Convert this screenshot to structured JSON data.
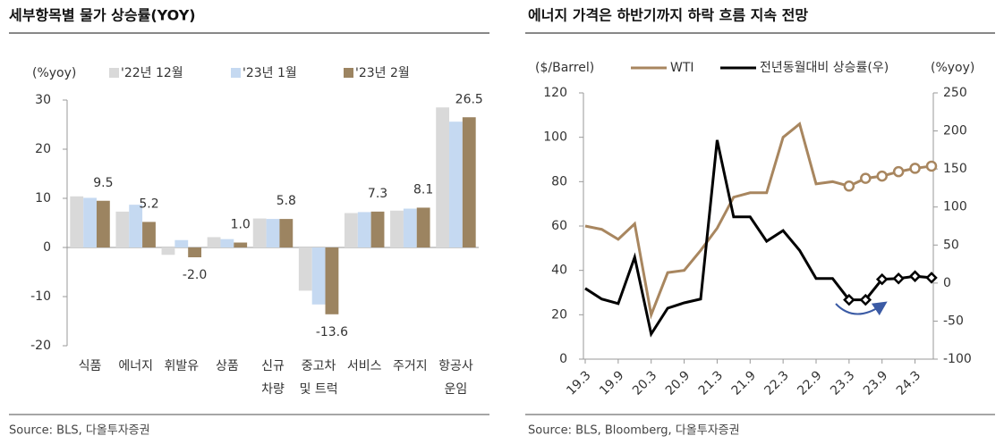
{
  "chart_data": [
    {
      "type": "bar",
      "title": "세부항목별 물가 상승률(YOY)",
      "ylabel": "(%yoy)",
      "source": "Source: BLS, 다올투자증권",
      "categories": [
        "식품",
        "에너지",
        "휘발유",
        "상품",
        "신규\n차량",
        "중고차\n및 트럭",
        "서비스",
        "주거지",
        "항공사\n운임"
      ],
      "series": [
        {
          "name": "'22년 12월",
          "color": "#d9d9d9",
          "values": [
            10.4,
            7.3,
            -1.5,
            2.1,
            5.9,
            -8.8,
            7.0,
            7.5,
            28.5
          ]
        },
        {
          "name": "'23년 1월",
          "color": "#c5d9f1",
          "values": [
            10.1,
            8.7,
            1.5,
            1.7,
            5.8,
            -11.6,
            7.2,
            7.9,
            25.6
          ]
        },
        {
          "name": "'23년 2월",
          "color": "#9c8461",
          "values": [
            9.5,
            5.2,
            -2.0,
            1.0,
            5.8,
            -13.6,
            7.3,
            8.1,
            26.5
          ],
          "value_labels": [
            "9.5",
            "5.2",
            "-2.0",
            "1.0",
            "5.8",
            "-13.6",
            "7.3",
            "8.1",
            "26.5"
          ]
        }
      ],
      "ylim": [
        -20,
        30
      ],
      "yticks": [
        -20,
        -10,
        0,
        10,
        20,
        30
      ]
    },
    {
      "type": "line",
      "title": "에너지 가격은 하반기까지 하락 흐름 지속 전망",
      "ylabel": "($/Barrel)",
      "y2label": "(%yoy)",
      "source": "Source: BLS, Bloomberg, 다올투자증권",
      "categories": [
        "19.3",
        null,
        "19.9",
        null,
        "20.3",
        null,
        "20.9",
        null,
        "21.3",
        null,
        "21.9",
        null,
        "22.3",
        null,
        "22.9",
        null,
        "23.3",
        null,
        "23.9",
        null,
        "24.3",
        null
      ],
      "series": [
        {
          "name": "WTI",
          "color": "#a8865f",
          "marker": "circle",
          "hollow_markers_from": 16,
          "values": [
            60,
            58.5,
            54,
            61,
            20,
            39,
            40,
            49,
            59,
            73,
            75,
            75,
            100,
            106,
            79,
            80,
            78,
            81.5,
            82.5,
            84.5,
            86,
            87
          ]
        },
        {
          "name": "전년동월대비 상승률(우)",
          "color": "#000000",
          "axis": "y2",
          "marker": "diamond",
          "hollow_markers_from": 16,
          "values": [
            -7,
            -21,
            -27,
            34,
            -67,
            -33,
            -26,
            -21,
            188,
            87,
            87,
            55,
            69,
            43,
            6,
            6,
            -22,
            -22,
            5,
            6,
            9,
            7
          ]
        }
      ],
      "ylim": [
        0,
        120
      ],
      "yticks": [
        0,
        20,
        40,
        60,
        80,
        100,
        120
      ],
      "y2lim": [
        -100,
        250
      ],
      "y2ticks": [
        -100,
        -50,
        0,
        50,
        100,
        150,
        200,
        250
      ]
    }
  ]
}
